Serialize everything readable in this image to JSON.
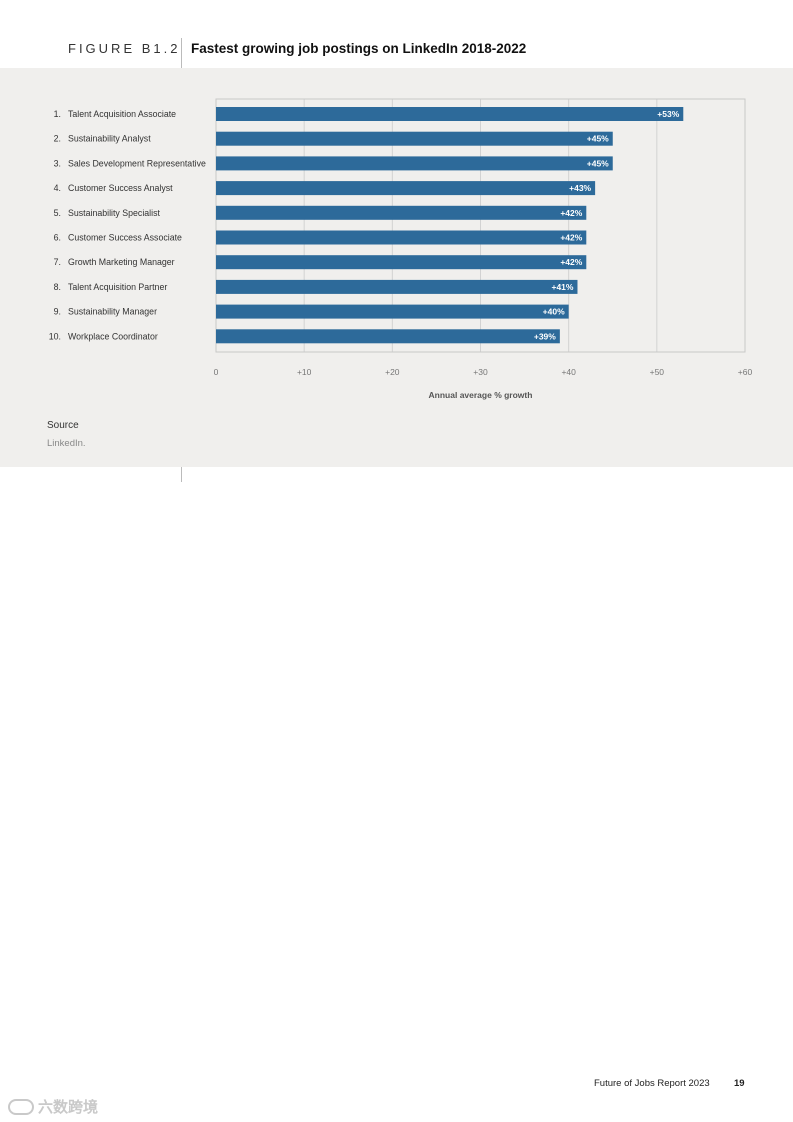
{
  "figure": {
    "label": "FIGURE B1.2",
    "title": "Fastest growing job postings on LinkedIn 2018-2022"
  },
  "chart_data": {
    "type": "bar",
    "orientation": "horizontal",
    "title": "Fastest growing job postings on LinkedIn 2018-2022",
    "xlabel": "Annual average % growth",
    "ylabel": "",
    "xlim": [
      0,
      60
    ],
    "xticks": [
      0,
      10,
      20,
      30,
      40,
      50,
      60
    ],
    "xtick_labels": [
      "0",
      "+10",
      "+20",
      "+30",
      "+40",
      "+50",
      "+60"
    ],
    "grid": true,
    "bar_color": "#2d6a9a",
    "ranks": [
      "1.",
      "2.",
      "3.",
      "4.",
      "5.",
      "6.",
      "7.",
      "8.",
      "9.",
      "10."
    ],
    "categories": [
      "Talent Acquisition Associate",
      "Sustainability Analyst",
      "Sales Development Representative",
      "Customer Success Analyst",
      "Sustainability Specialist",
      "Customer Success Associate",
      "Growth Marketing Manager",
      "Talent Acquisition Partner",
      "Sustainability Manager",
      "Workplace Coordinator"
    ],
    "values": [
      53,
      45,
      45,
      43,
      42,
      42,
      42,
      41,
      40,
      39
    ],
    "value_labels": [
      "+53%",
      "+45%",
      "+45%",
      "+43%",
      "+42%",
      "+42%",
      "+42%",
      "+41%",
      "+40%",
      "+39%"
    ]
  },
  "source": {
    "label": "Source",
    "text": "LinkedIn."
  },
  "footer": {
    "report": "Future of Jobs Report 2023",
    "page": "19"
  },
  "watermark": {
    "text": "六数跨境"
  }
}
